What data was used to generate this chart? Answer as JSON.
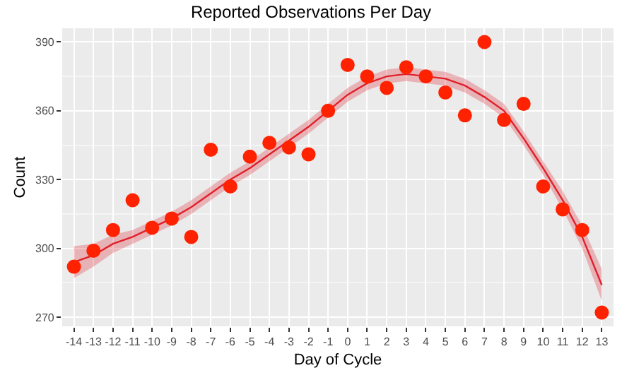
{
  "chart_data": {
    "type": "scatter",
    "title": "Reported Observations Per Day",
    "xlabel": "Day of Cycle",
    "ylabel": "Count",
    "xlim": [
      -14.6,
      13.6
    ],
    "xticks": [
      -14,
      -13,
      -12,
      -11,
      -10,
      -9,
      -8,
      -7,
      -6,
      -5,
      -4,
      -3,
      -2,
      -1,
      0,
      1,
      2,
      3,
      4,
      5,
      6,
      7,
      8,
      9,
      10,
      11,
      12,
      13
    ],
    "ylim": [
      266,
      396
    ],
    "yticks": [
      270,
      300,
      330,
      360,
      390
    ],
    "grid": true,
    "series": [
      {
        "type": "line",
        "marker": "none",
        "color": "#e0202a",
        "x": [
          -14,
          -13,
          -12,
          -11,
          -10,
          -9,
          -8,
          -7,
          -6,
          -5,
          -4,
          -3,
          -2,
          -1,
          0,
          1,
          2,
          3,
          4,
          5,
          6,
          7,
          8,
          9,
          10,
          11,
          12,
          13
        ],
        "values": [
          294,
          297,
          302,
          305,
          309,
          313,
          318,
          324,
          330,
          335,
          341,
          347,
          353,
          360,
          367,
          372,
          375,
          376,
          375,
          374,
          371,
          366,
          360,
          348,
          335,
          321,
          305,
          284
        ],
        "lower": [
          287,
          292,
          298,
          302,
          306,
          310,
          315,
          321,
          327,
          332,
          338,
          344,
          350,
          357,
          364,
          369,
          372,
          373,
          372,
          371,
          368,
          363,
          357,
          345,
          332,
          317,
          300,
          277
        ],
        "upper": [
          301,
          302,
          306,
          308,
          312,
          316,
          321,
          327,
          333,
          338,
          344,
          350,
          356,
          363,
          370,
          375,
          378,
          379,
          378,
          377,
          374,
          369,
          363,
          351,
          338,
          325,
          310,
          291
        ]
      },
      {
        "marker": "circle",
        "color": "#ff2200",
        "x": [
          -14,
          -13,
          -12,
          -11,
          -10,
          -9,
          -8,
          -7,
          -6,
          -5,
          -4,
          -3,
          -2,
          -1,
          0,
          1,
          2,
          3,
          4,
          5,
          6,
          7,
          8,
          9,
          10,
          11,
          12,
          13
        ],
        "values": [
          292,
          299,
          308,
          321,
          309,
          313,
          305,
          343,
          327,
          340,
          346,
          344,
          341,
          360,
          380,
          375,
          370,
          379,
          375,
          368,
          358,
          390,
          356,
          363,
          327,
          317,
          308,
          272
        ]
      }
    ]
  }
}
